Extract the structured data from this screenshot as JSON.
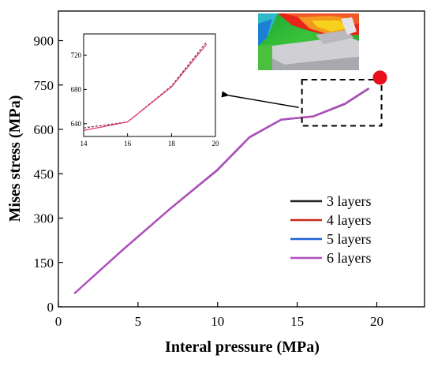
{
  "chart_data": {
    "type": "line",
    "xlabel": "Interal pressure (MPa)",
    "ylabel": "Mises stress (MPa)",
    "xlim": [
      0,
      23
    ],
    "ylim": [
      0,
      1000
    ],
    "xticks": [
      "0",
      "5",
      "10",
      "15",
      "20"
    ],
    "xtick_values": [
      0,
      5,
      10,
      15,
      20
    ],
    "yticks": [
      "0",
      "150",
      "300",
      "450",
      "600",
      "750",
      "900"
    ],
    "ytick_values": [
      0,
      150,
      300,
      450,
      600,
      750,
      900
    ],
    "legend_position": "bottom-right",
    "series": [
      {
        "name": "3 layers",
        "color": "#222222",
        "x": [
          1,
          4,
          7,
          10,
          12,
          14,
          16,
          18,
          19.5
        ],
        "y": [
          45,
          190,
          330,
          462,
          572,
          632,
          643,
          685,
          737
        ]
      },
      {
        "name": "4 layers",
        "color": "#cc2a1c",
        "x": [
          1,
          4,
          7,
          10,
          12,
          14,
          16,
          18,
          19.5
        ],
        "y": [
          45,
          190,
          330,
          463,
          573,
          633,
          643,
          686,
          738
        ]
      },
      {
        "name": "5 layers",
        "color": "#1f5fd6",
        "x": [
          1,
          4,
          7,
          10,
          12,
          14,
          16,
          18,
          19.5
        ],
        "y": [
          45,
          190,
          331,
          463,
          573,
          632,
          644,
          686,
          738
        ]
      },
      {
        "name": "6 layers",
        "color": "#b04fbf",
        "x": [
          1,
          4,
          7,
          10,
          12,
          14,
          16,
          18,
          19.5
        ],
        "y": [
          45,
          191,
          331,
          464,
          574,
          633,
          644,
          687,
          739
        ]
      }
    ],
    "inset": {
      "xlim": [
        14,
        20
      ],
      "ylim": [
        625,
        745
      ],
      "xticks": [
        "14",
        "16",
        "18",
        "20"
      ],
      "xtick_values": [
        14,
        16,
        18,
        20
      ],
      "yticks": [
        "640",
        "680",
        "720"
      ],
      "ytick_values": [
        640,
        680,
        720
      ],
      "series": [
        {
          "name": "dashed",
          "color": "#7a2a2a",
          "style": "dashed",
          "x": [
            14,
            16,
            18,
            19.6
          ],
          "y": [
            635,
            642,
            684,
            736
          ]
        },
        {
          "name": "solid",
          "color": "#e0307a",
          "style": "solid",
          "x": [
            14,
            16,
            18,
            19.6
          ],
          "y": [
            632,
            642,
            683,
            733
          ]
        }
      ]
    },
    "annotations": {
      "zoom_box_range": {
        "x": [
          15.3,
          20.3
        ],
        "y": [
          612,
          768
        ]
      },
      "marker_point": {
        "x": 20.2,
        "y": 775,
        "color": "#e8101a"
      },
      "arrow_color": "#000000"
    }
  }
}
